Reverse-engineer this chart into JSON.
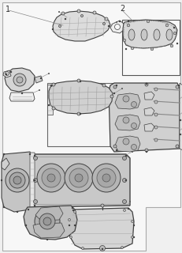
{
  "background_color": "#f0f0f0",
  "page_color": "#f5f5f5",
  "line_color": "#404040",
  "thin_line": "#666666",
  "label_1": "1",
  "label_2": "2",
  "fig_width": 2.32,
  "fig_height": 3.2,
  "dpi": 100,
  "part_fill": "#e8e8e8",
  "part_fill_dark": "#d0d0d0",
  "part_fill_white": "#f0f0f0",
  "box_fill": "#f8f8f8",
  "note_color": "#333333"
}
